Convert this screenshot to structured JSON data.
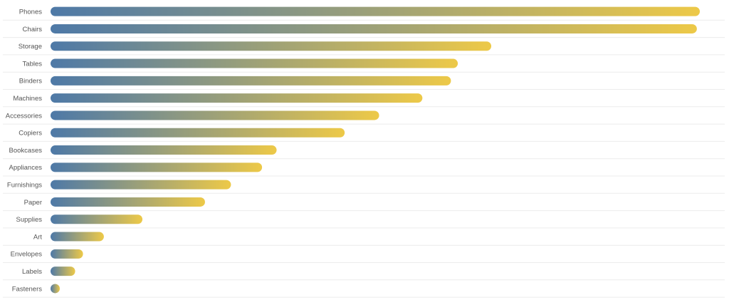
{
  "chart_data": {
    "type": "bar",
    "orientation": "horizontal",
    "sort": "descending",
    "categories": [
      "Phones",
      "Chairs",
      "Storage",
      "Tables",
      "Binders",
      "Machines",
      "Accessories",
      "Copiers",
      "Bookcases",
      "Appliances",
      "Furnishings",
      "Paper",
      "Supplies",
      "Art",
      "Envelopes",
      "Labels",
      "Fasteners"
    ],
    "values": [
      330000,
      328500,
      224000,
      207000,
      203500,
      189000,
      167000,
      149500,
      114900,
      107500,
      91700,
      78500,
      46700,
      27100,
      16500,
      12500,
      3000
    ],
    "xlim": [
      0,
      330000
    ],
    "title": "",
    "xlabel": "",
    "ylabel": "",
    "grid": false,
    "bar_gradient": {
      "start_color": "#4e79a7",
      "end_color": "#edc948"
    },
    "separator_color": "#ececec",
    "label_color": "#555555"
  }
}
